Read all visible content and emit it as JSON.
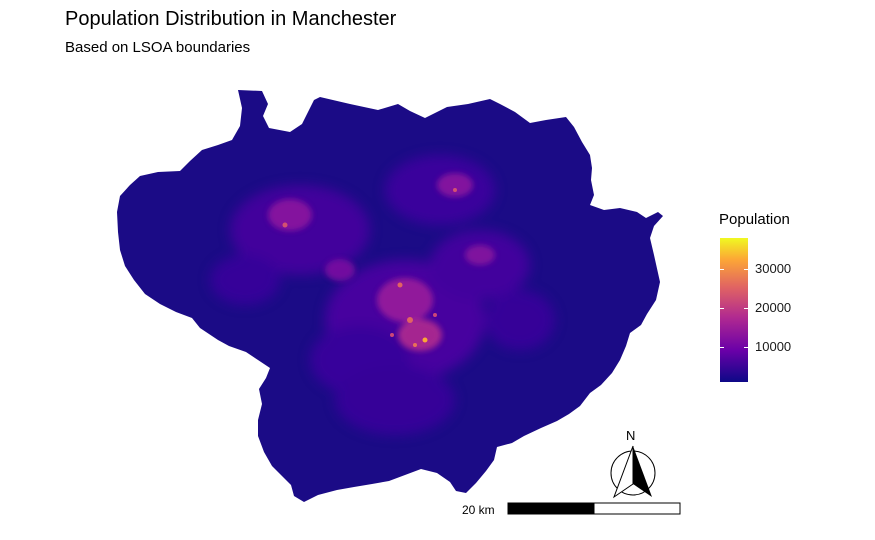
{
  "title": "Population Distribution in Manchester",
  "subtitle": "Based on LSOA boundaries",
  "legend": {
    "title": "Population",
    "ticks": [
      {
        "value": 10000,
        "label": "10000"
      },
      {
        "value": 20000,
        "label": "20000"
      },
      {
        "value": 30000,
        "label": "30000"
      }
    ],
    "range": [
      1000,
      38000
    ],
    "palette": [
      "#0d0887",
      "#6a00a8",
      "#b12a90",
      "#e16462",
      "#fca636",
      "#f0f921"
    ]
  },
  "scale_bar": {
    "label": "20 km"
  },
  "north_arrow": {
    "label": "N"
  },
  "colors": {
    "base_fill": "#1b0b86"
  }
}
